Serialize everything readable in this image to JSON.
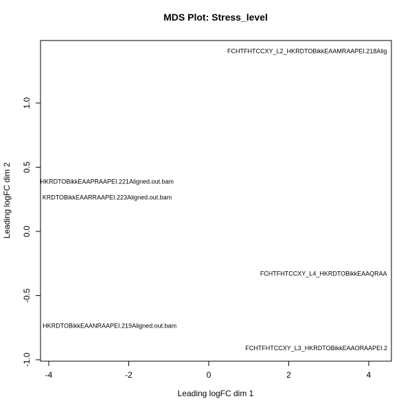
{
  "chart_data": {
    "type": "scatter",
    "title": "MDS Plot: Stress_level",
    "x_label": "Leading logFC dim 1",
    "y_label": "Leading logFC dim 2",
    "xlim": [
      -4.206,
      4.567
    ],
    "ylim": [
      -1.011,
      1.487
    ],
    "xticks": [
      -4,
      -2,
      0,
      2,
      4
    ],
    "yticks": [
      {
        "value": -1,
        "label": "-1.0"
      },
      -0.5,
      {
        "value": 0,
        "label": "0.0"
      },
      0.5,
      {
        "value": 1,
        "label": "1.0"
      }
    ],
    "x": [
      3.04,
      -3.45,
      -3.5,
      -3.38,
      3.86,
      3.49
    ],
    "y": [
      1.4,
      0.385,
      0.262,
      -0.738,
      -0.332,
      -0.914
    ],
    "labels": [
      "FCHTFHTCCXY_L2_HKRDTOBikkEAAMRAAPEI.218Alig",
      "HKRDTOBikkEAAPRAAPEI.221Aligned.out.bam",
      "KRDTOBikkEAARRAAPEI.223Aligned.out.bam",
      "HKRDTOBikkEAANRAAPEI.219Aligned.out.bam",
      "FCHTFHTCCXY_L4_HKRDTOBikkEAAQRAA",
      "FCHTFHTCCXY_L3_HKRDTOBikkEAAORAAPEI.2"
    ],
    "colors": [
      "#ff0000",
      "#000000",
      "#000000",
      "#000000",
      "#ff0000",
      "#ff0000"
    ]
  }
}
